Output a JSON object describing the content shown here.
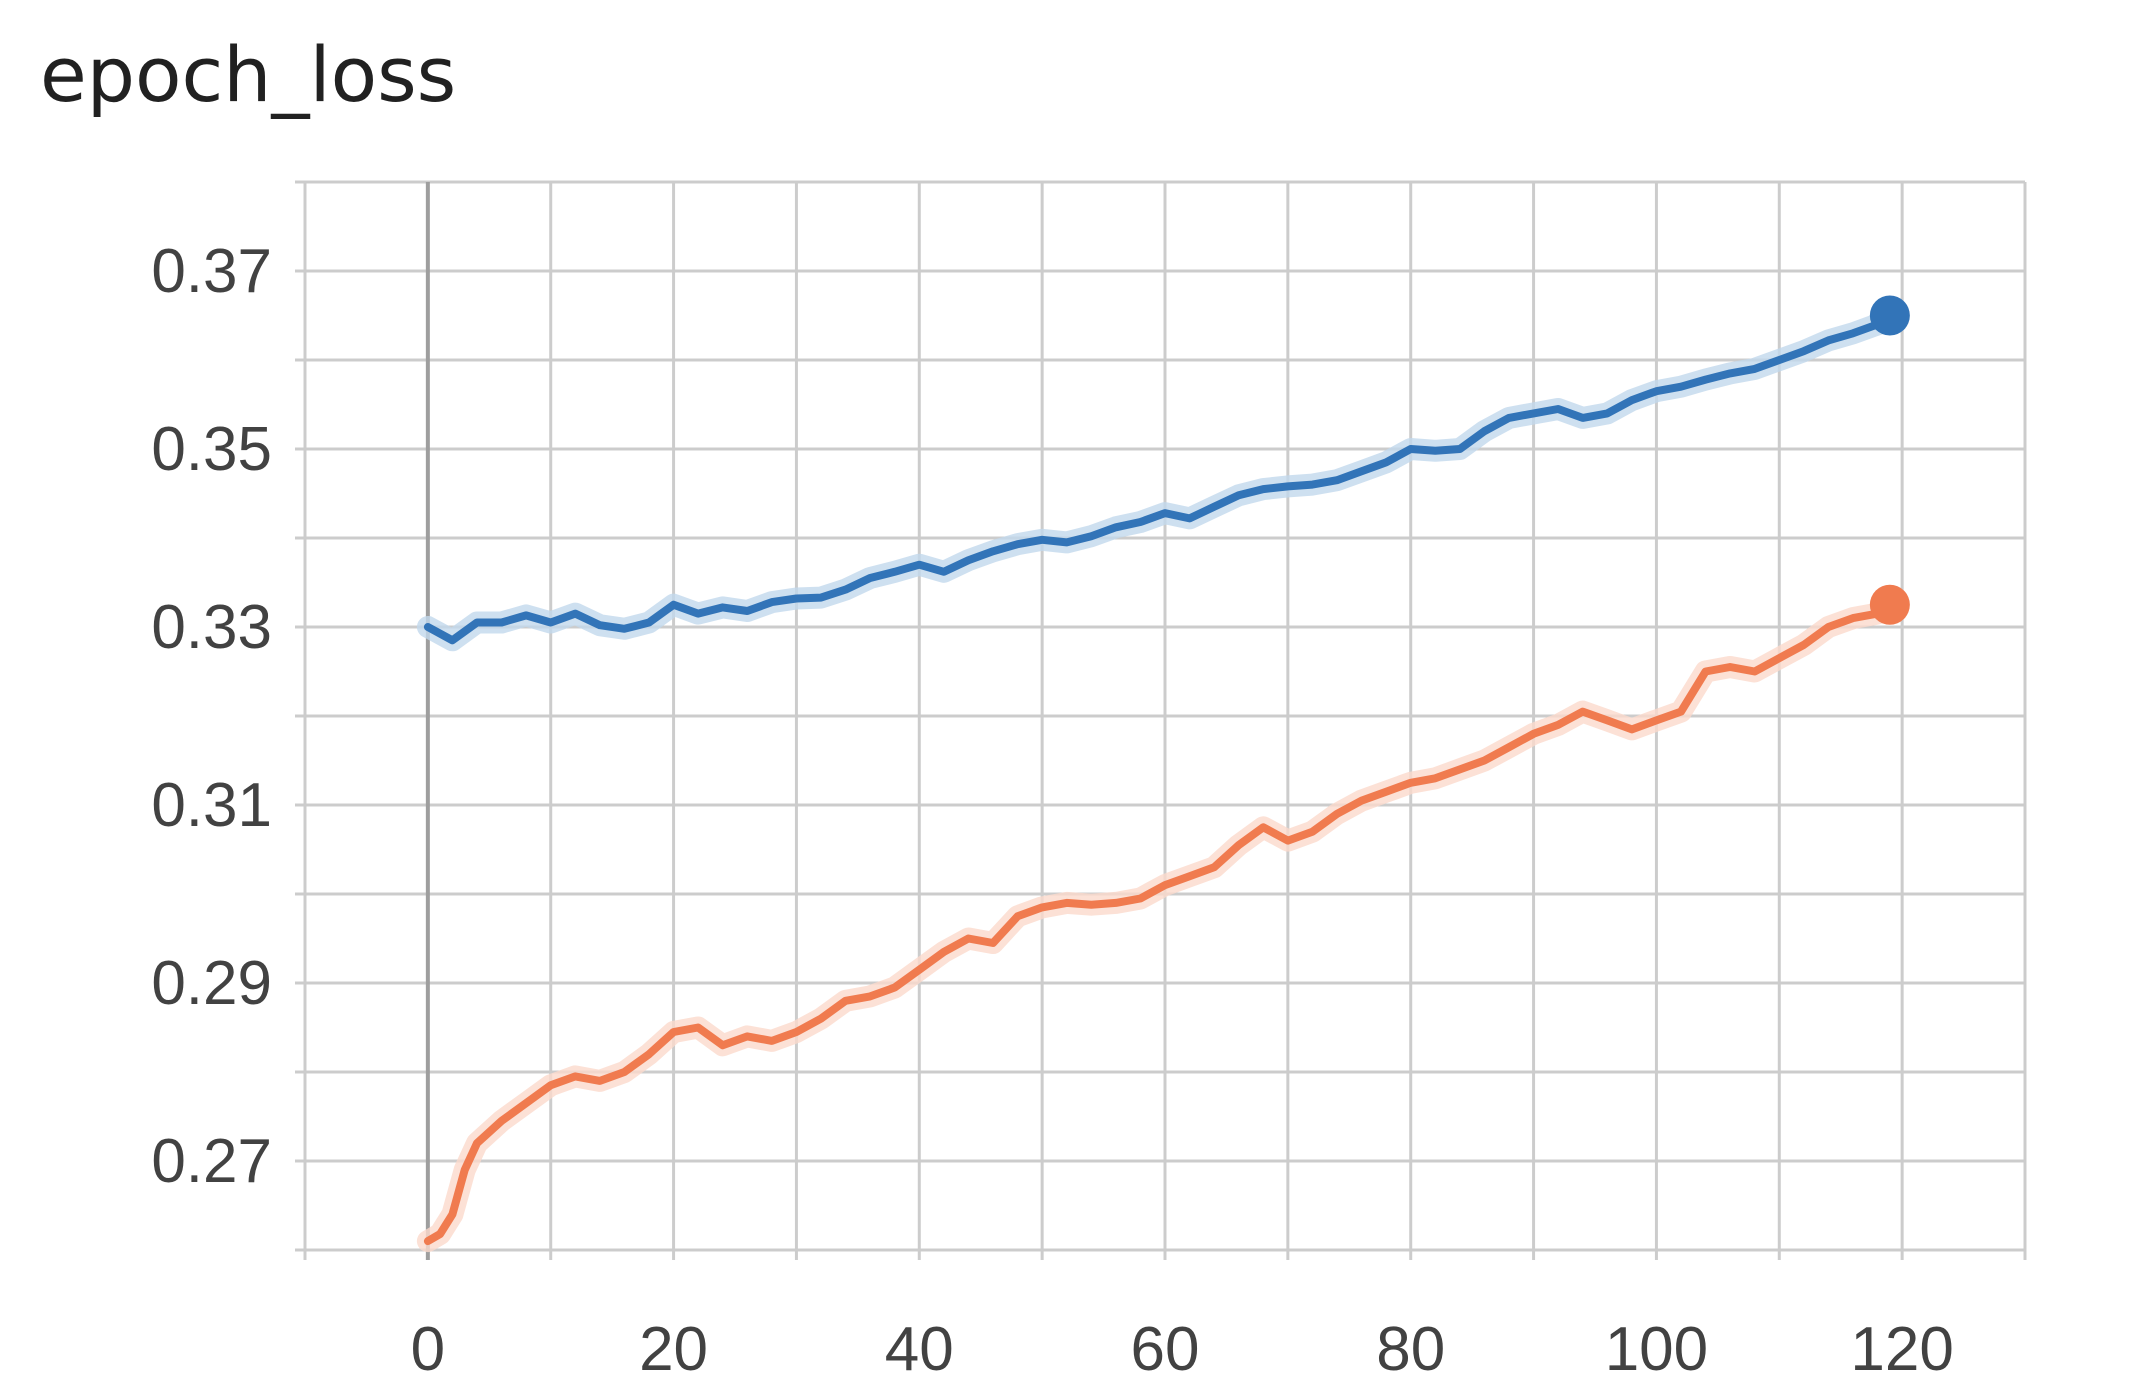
{
  "chart_data": {
    "type": "line",
    "title": "epoch_loss",
    "xlabel": "",
    "ylabel": "",
    "xlim": [
      -10,
      130
    ],
    "ylim": [
      0.26,
      0.38
    ],
    "x_ticks": [
      "0",
      "20",
      "40",
      "60",
      "80",
      "100",
      "120"
    ],
    "y_ticks": [
      "0.27",
      "0.29",
      "0.31",
      "0.33",
      "0.35",
      "0.37"
    ],
    "grid": true,
    "legend": "none",
    "series": [
      {
        "color": "#3274b8",
        "raw_color": "#c2d8ec",
        "x": [
          0,
          2,
          4,
          6,
          8,
          10,
          12,
          14,
          16,
          18,
          20,
          22,
          24,
          26,
          28,
          30,
          32,
          34,
          36,
          38,
          40,
          42,
          44,
          46,
          48,
          50,
          52,
          54,
          56,
          58,
          60,
          62,
          64,
          66,
          68,
          70,
          72,
          74,
          76,
          78,
          80,
          82,
          84,
          86,
          88,
          90,
          92,
          94,
          96,
          98,
          100,
          102,
          104,
          106,
          108,
          110,
          112,
          114,
          116,
          118,
          119
        ],
        "values": [
          0.33,
          0.3285,
          0.3305,
          0.3305,
          0.3313,
          0.3305,
          0.3315,
          0.3302,
          0.3298,
          0.3305,
          0.3325,
          0.3315,
          0.3322,
          0.3318,
          0.3328,
          0.3332,
          0.3333,
          0.3342,
          0.3355,
          0.3362,
          0.337,
          0.3362,
          0.3375,
          0.3385,
          0.3393,
          0.3398,
          0.3395,
          0.3402,
          0.3412,
          0.3418,
          0.3428,
          0.3422,
          0.3435,
          0.3448,
          0.3455,
          0.3458,
          0.346,
          0.3465,
          0.3475,
          0.3485,
          0.35,
          0.3498,
          0.35,
          0.352,
          0.3535,
          0.354,
          0.3545,
          0.3535,
          0.354,
          0.3555,
          0.3565,
          0.357,
          0.3578,
          0.3585,
          0.359,
          0.36,
          0.361,
          0.3622,
          0.363,
          0.364,
          0.365
        ]
      },
      {
        "color": "#f07b4f",
        "raw_color": "#fbd9cc",
        "x": [
          0,
          1,
          2,
          3,
          4,
          6,
          8,
          10,
          12,
          14,
          16,
          18,
          20,
          22,
          24,
          26,
          28,
          30,
          32,
          34,
          36,
          38,
          40,
          42,
          44,
          46,
          48,
          50,
          52,
          54,
          56,
          58,
          60,
          62,
          64,
          66,
          68,
          70,
          72,
          74,
          76,
          78,
          80,
          82,
          84,
          86,
          88,
          90,
          92,
          94,
          96,
          98,
          100,
          102,
          104,
          106,
          108,
          110,
          112,
          114,
          116,
          118,
          119
        ],
        "values": [
          0.261,
          0.2618,
          0.264,
          0.269,
          0.272,
          0.2745,
          0.2765,
          0.2785,
          0.2795,
          0.279,
          0.28,
          0.282,
          0.2845,
          0.285,
          0.283,
          0.284,
          0.2835,
          0.2845,
          0.286,
          0.288,
          0.2885,
          0.2895,
          0.2915,
          0.2935,
          0.295,
          0.2945,
          0.2975,
          0.2985,
          0.299,
          0.2988,
          0.299,
          0.2995,
          0.301,
          0.302,
          0.303,
          0.3055,
          0.3075,
          0.306,
          0.307,
          0.309,
          0.3105,
          0.3115,
          0.3125,
          0.313,
          0.314,
          0.315,
          0.3165,
          0.318,
          0.319,
          0.3205,
          0.3195,
          0.3185,
          0.3195,
          0.3205,
          0.325,
          0.3255,
          0.325,
          0.3265,
          0.328,
          0.33,
          0.331,
          0.3315,
          0.3325
        ]
      }
    ]
  }
}
